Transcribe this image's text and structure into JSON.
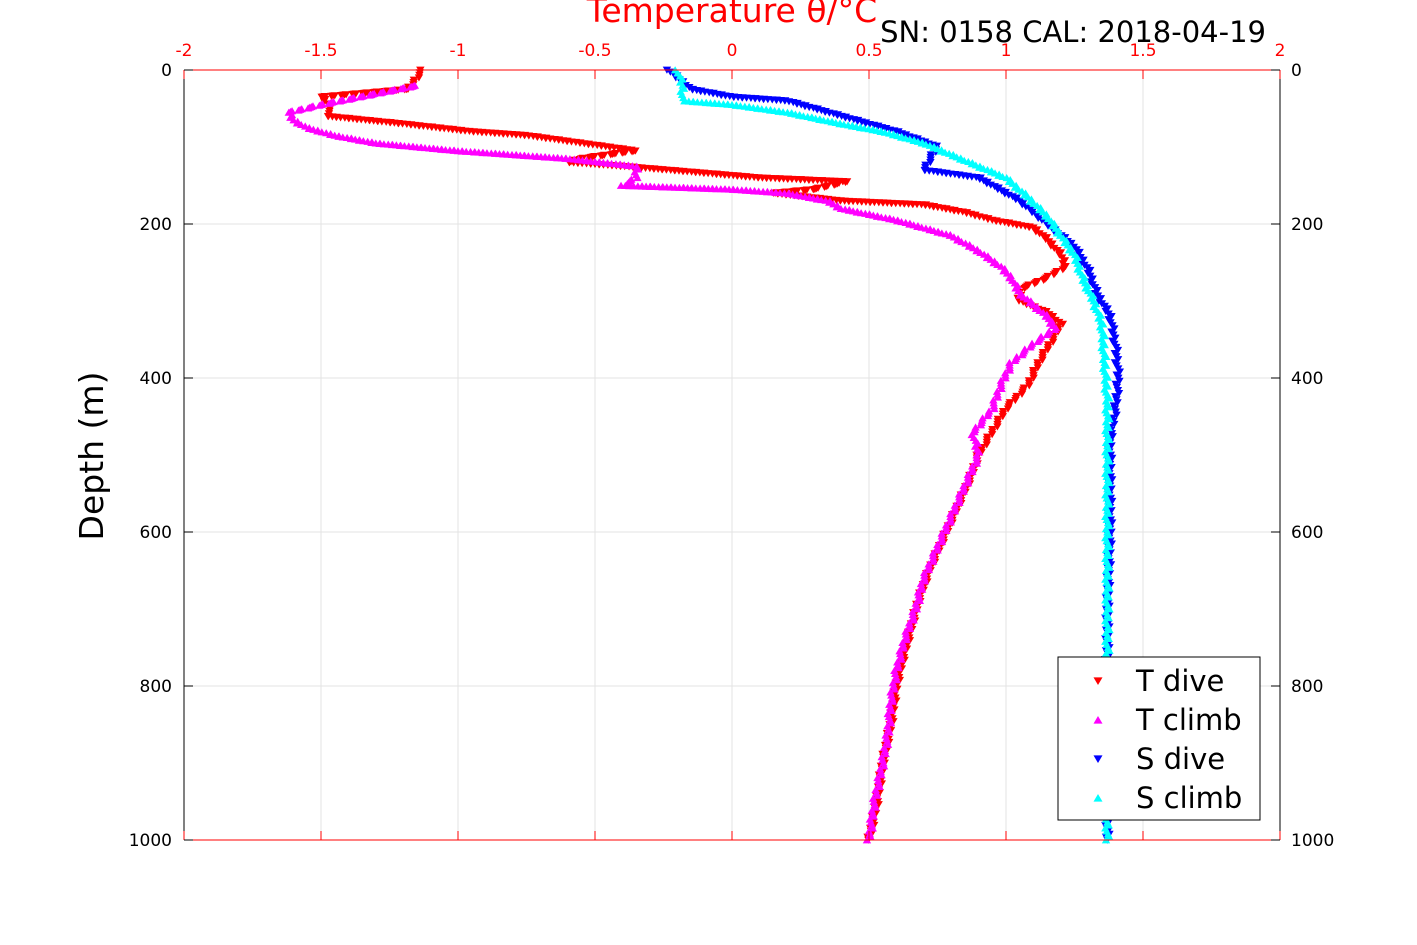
{
  "chart_data": {
    "type": "scatter",
    "title": "SN: 0158  CAL: 2018-04-19",
    "xlabel": "Temperature θ/°C",
    "ylabel": "Depth (m)",
    "xlim": [
      -2,
      2
    ],
    "ylim": [
      0,
      1000
    ],
    "y_reversed": true,
    "x_ticks": [
      -2,
      -1.5,
      -1,
      -0.5,
      0,
      0.5,
      1,
      1.5,
      2
    ],
    "x_tick_labels": [
      "-2",
      "-1.5",
      "-1",
      "-0.5",
      "0",
      "0.5",
      "1",
      "1.5",
      "2"
    ],
    "y_ticks": [
      0,
      200,
      400,
      600,
      800,
      1000
    ],
    "y_tick_labels": [
      "0",
      "200",
      "400",
      "600",
      "800",
      "1000"
    ],
    "grid": true,
    "legend_position": "bottom-right",
    "series": [
      {
        "name": "T dive",
        "marker": "triangle-down",
        "color": "#ff0000",
        "points": [
          [
            -1.13,
            0
          ],
          [
            -1.15,
            10
          ],
          [
            -1.18,
            25
          ],
          [
            -1.5,
            35
          ],
          [
            -1.46,
            50
          ],
          [
            -1.48,
            60
          ],
          [
            -1.2,
            70
          ],
          [
            -0.95,
            80
          ],
          [
            -0.75,
            85
          ],
          [
            -0.55,
            95
          ],
          [
            -0.35,
            105
          ],
          [
            -0.55,
            115
          ],
          [
            -0.6,
            120
          ],
          [
            -0.4,
            125
          ],
          [
            0.1,
            140
          ],
          [
            0.42,
            145
          ],
          [
            0.3,
            155
          ],
          [
            0.15,
            160
          ],
          [
            0.4,
            170
          ],
          [
            0.7,
            175
          ],
          [
            0.85,
            185
          ],
          [
            0.95,
            195
          ],
          [
            1.1,
            205
          ],
          [
            1.15,
            220
          ],
          [
            1.2,
            240
          ],
          [
            1.22,
            255
          ],
          [
            1.15,
            270
          ],
          [
            1.05,
            285
          ],
          [
            1.05,
            300
          ],
          [
            1.15,
            315
          ],
          [
            1.2,
            330
          ],
          [
            1.17,
            350
          ],
          [
            1.12,
            380
          ],
          [
            1.08,
            410
          ],
          [
            1.0,
            440
          ],
          [
            0.95,
            470
          ],
          [
            0.9,
            500
          ],
          [
            0.87,
            530
          ],
          [
            0.82,
            570
          ],
          [
            0.77,
            610
          ],
          [
            0.72,
            650
          ],
          [
            0.68,
            690
          ],
          [
            0.65,
            730
          ],
          [
            0.62,
            770
          ],
          [
            0.6,
            800
          ],
          [
            0.58,
            850
          ],
          [
            0.55,
            900
          ],
          [
            0.53,
            950
          ],
          [
            0.5,
            1000
          ]
        ]
      },
      {
        "name": "T climb",
        "marker": "triangle-up",
        "color": "#ff00ff",
        "points": [
          [
            -1.15,
            20
          ],
          [
            -1.5,
            45
          ],
          [
            -1.62,
            55
          ],
          [
            -1.6,
            65
          ],
          [
            -1.55,
            75
          ],
          [
            -1.45,
            85
          ],
          [
            -1.3,
            95
          ],
          [
            -1.0,
            105
          ],
          [
            -0.6,
            115
          ],
          [
            -0.35,
            125
          ],
          [
            -0.35,
            140
          ],
          [
            -0.4,
            150
          ],
          [
            0.0,
            155
          ],
          [
            0.2,
            160
          ],
          [
            0.35,
            170
          ],
          [
            0.4,
            180
          ],
          [
            0.6,
            195
          ],
          [
            0.8,
            215
          ],
          [
            0.9,
            235
          ],
          [
            0.98,
            255
          ],
          [
            1.02,
            270
          ],
          [
            1.05,
            290
          ],
          [
            1.1,
            305
          ],
          [
            1.15,
            320
          ],
          [
            1.18,
            335
          ],
          [
            1.1,
            355
          ],
          [
            1.02,
            380
          ],
          [
            0.98,
            410
          ],
          [
            0.95,
            440
          ],
          [
            0.88,
            470
          ],
          [
            0.9,
            500
          ],
          [
            0.85,
            540
          ],
          [
            0.8,
            580
          ],
          [
            0.75,
            620
          ],
          [
            0.7,
            660
          ],
          [
            0.67,
            700
          ],
          [
            0.63,
            740
          ],
          [
            0.6,
            780
          ],
          [
            0.58,
            820
          ],
          [
            0.57,
            860
          ],
          [
            0.55,
            900
          ],
          [
            0.52,
            950
          ],
          [
            0.5,
            1000
          ]
        ]
      },
      {
        "name": "S dive",
        "marker": "triangle-down",
        "color": "#0000ff",
        "points": [
          [
            -0.23,
            0
          ],
          [
            -0.2,
            10
          ],
          [
            -0.15,
            25
          ],
          [
            0.0,
            35
          ],
          [
            0.2,
            40
          ],
          [
            0.4,
            60
          ],
          [
            0.6,
            80
          ],
          [
            0.75,
            100
          ],
          [
            0.7,
            130
          ],
          [
            0.9,
            140
          ],
          [
            1.05,
            170
          ],
          [
            1.15,
            200
          ],
          [
            1.25,
            230
          ],
          [
            1.3,
            260
          ],
          [
            1.33,
            290
          ],
          [
            1.38,
            320
          ],
          [
            1.4,
            360
          ],
          [
            1.41,
            400
          ],
          [
            1.4,
            440
          ],
          [
            1.38,
            480
          ],
          [
            1.38,
            520
          ],
          [
            1.38,
            560
          ],
          [
            1.38,
            600
          ],
          [
            1.37,
            700
          ],
          [
            1.37,
            800
          ],
          [
            1.37,
            900
          ],
          [
            1.37,
            1000
          ]
        ]
      },
      {
        "name": "S climb",
        "marker": "triangle-up",
        "color": "#00ffff",
        "points": [
          [
            -0.2,
            0
          ],
          [
            -0.18,
            20
          ],
          [
            -0.18,
            40
          ],
          [
            0.0,
            45
          ],
          [
            0.2,
            55
          ],
          [
            0.4,
            70
          ],
          [
            0.55,
            80
          ],
          [
            0.7,
            95
          ],
          [
            0.8,
            110
          ],
          [
            0.9,
            125
          ],
          [
            1.0,
            140
          ],
          [
            1.08,
            165
          ],
          [
            1.15,
            190
          ],
          [
            1.2,
            215
          ],
          [
            1.25,
            240
          ],
          [
            1.28,
            270
          ],
          [
            1.32,
            300
          ],
          [
            1.35,
            330
          ],
          [
            1.36,
            380
          ],
          [
            1.37,
            430
          ],
          [
            1.37,
            480
          ],
          [
            1.37,
            540
          ],
          [
            1.37,
            600
          ],
          [
            1.37,
            700
          ],
          [
            1.37,
            800
          ],
          [
            1.37,
            900
          ],
          [
            1.37,
            1000
          ]
        ]
      }
    ]
  }
}
